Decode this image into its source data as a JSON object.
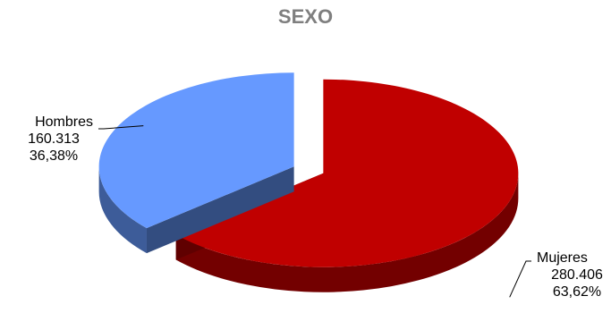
{
  "chart_data": {
    "type": "pie",
    "title": "SEXO",
    "slices": [
      {
        "label": "Hombres",
        "value": 160313,
        "value_text": "160.313",
        "percent": "36,38%",
        "color": "#6699ff",
        "exploded": true
      },
      {
        "label": "Mujeres",
        "value": 280406,
        "value_text": "280.406",
        "percent": "63,62%",
        "color": "#c00000",
        "exploded": true
      }
    ],
    "style": "3d-exploded-pie",
    "legend": "none",
    "data_labels": "outside-with-leader-lines"
  }
}
